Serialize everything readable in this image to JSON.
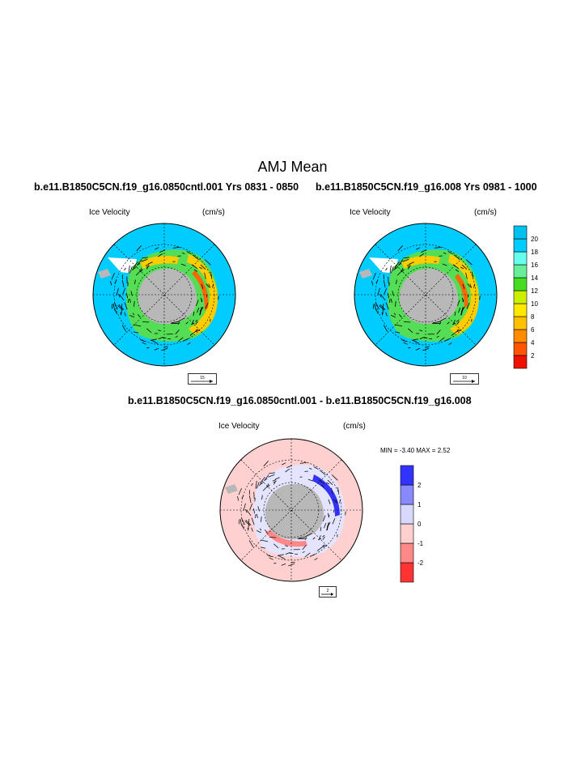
{
  "title": "AMJ Mean",
  "panels": [
    {
      "subtitle": "b.e11.B1850C5CN.f19_g16.0850cntl.001  Yrs 0831 - 0850",
      "left_label": "Ice Velocity",
      "right_label": "(cm/s)",
      "ref_vector_label": "15"
    },
    {
      "subtitle": "b.e11.B1850C5CN.f19_g16.008  Yrs 0981 - 1000",
      "left_label": "Ice Velocity",
      "right_label": "(cm/s)",
      "ref_vector_label": "10"
    },
    {
      "subtitle": "b.e11.B1850C5CN.f19_g16.0850cntl.001 - b.e11.B1850C5CN.f19_g16.008",
      "left_label": "Ice Velocity",
      "right_label": "(cm/s)",
      "ref_vector_label": "2",
      "min_max": "MIN =  -3.40 MAX =   2.52"
    }
  ],
  "colorbar_mean": {
    "labels": [
      "20",
      "18",
      "16",
      "14",
      "12",
      "10",
      "8",
      "6",
      "4",
      "2"
    ],
    "colors": [
      "#ee1100",
      "#ff5500",
      "#ff8c00",
      "#ffc000",
      "#ffe800",
      "#ccee00",
      "#44dd22",
      "#66ee99",
      "#66ffee",
      "#00ccff",
      "#00c0f0"
    ]
  },
  "colorbar_diff": {
    "labels": [
      "2",
      "1",
      "0",
      "-1",
      "-2"
    ],
    "colors": [
      "#ff3333",
      "#ff8888",
      "#ffd0d0",
      "#d8d8ff",
      "#8888ff",
      "#3333ff"
    ]
  },
  "colors": {
    "ocean_mean": "#00ccff",
    "ocean_diff": "#ffd0d0",
    "land": "#b8b8b8"
  }
}
